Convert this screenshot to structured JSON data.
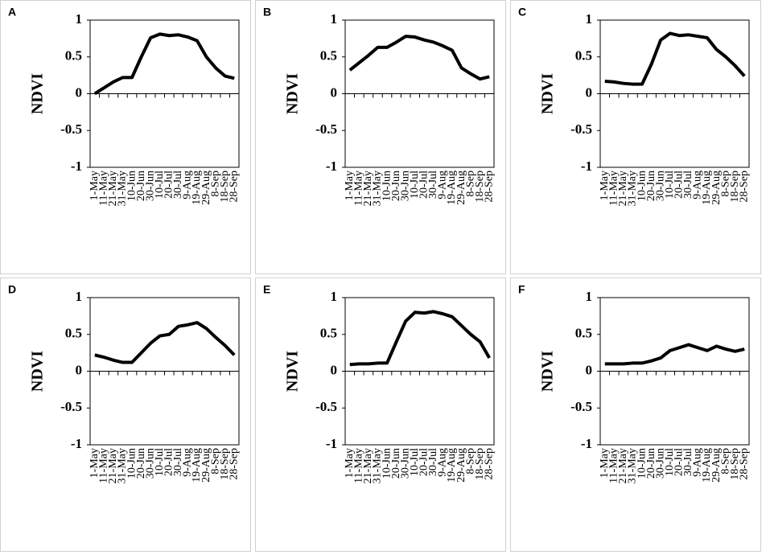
{
  "chart_data": [
    {
      "type": "line",
      "title": "A",
      "ylabel": "NDVI",
      "color": "#000000",
      "categories": [
        "1-May",
        "11-May",
        "21-May",
        "31-May",
        "10-Jun",
        "20-Jun",
        "30-Jun",
        "10-Jul",
        "20-Jul",
        "30-Jul",
        "9-Aug",
        "19-Aug",
        "29-Aug",
        "8-Sep",
        "18-Sep",
        "28-Sep"
      ],
      "values": [
        0.0,
        0.08,
        0.16,
        0.22,
        0.22,
        0.5,
        0.76,
        0.81,
        0.79,
        0.8,
        0.77,
        0.72,
        0.5,
        0.35,
        0.24,
        0.21
      ],
      "ylim": [
        -1,
        1
      ],
      "yticks": [
        -1,
        -0.5,
        0,
        0.5,
        1
      ]
    },
    {
      "type": "line",
      "title": "B",
      "ylabel": "NDVI",
      "color": "#000000",
      "categories": [
        "1-May",
        "11-May",
        "21-May",
        "31-May",
        "10-Jun",
        "20-Jun",
        "30-Jun",
        "10-Jul",
        "20-Jul",
        "30-Jul",
        "9-Aug",
        "19-Aug",
        "29-Aug",
        "8-Sep",
        "18-Sep",
        "28-Sep"
      ],
      "values": [
        0.32,
        0.42,
        0.52,
        0.63,
        0.63,
        0.7,
        0.78,
        0.77,
        0.73,
        0.7,
        0.65,
        0.59,
        0.35,
        0.27,
        0.2,
        0.23
      ],
      "ylim": [
        -1,
        1
      ],
      "yticks": [
        -1,
        -0.5,
        0,
        0.5,
        1
      ]
    },
    {
      "type": "line",
      "title": "C",
      "ylabel": "NDVI",
      "color": "#000000",
      "categories": [
        "1-May",
        "11-May",
        "21-May",
        "31-May",
        "10-Jun",
        "20-Jun",
        "30-Jun",
        "10-Jul",
        "20-Jul",
        "30-Jul",
        "9-Aug",
        "19-Aug",
        "29-Aug",
        "8-Sep",
        "18-Sep",
        "28-Sep"
      ],
      "values": [
        0.17,
        0.16,
        0.14,
        0.13,
        0.13,
        0.4,
        0.73,
        0.82,
        0.79,
        0.8,
        0.78,
        0.76,
        0.6,
        0.5,
        0.38,
        0.24
      ],
      "ylim": [
        -1,
        1
      ],
      "yticks": [
        -1,
        -0.5,
        0,
        0.5,
        1
      ]
    },
    {
      "type": "line",
      "title": "D",
      "ylabel": "NDVI",
      "color": "#000000",
      "categories": [
        "1-May",
        "11-May",
        "21-May",
        "31-May",
        "10-Jun",
        "20-Jun",
        "30-Jun",
        "10-Jul",
        "20-Jul",
        "30-Jul",
        "9-Aug",
        "19-Aug",
        "29-Aug",
        "8-Sep",
        "18-Sep",
        "28-Sep"
      ],
      "values": [
        0.22,
        0.19,
        0.15,
        0.12,
        0.12,
        0.25,
        0.38,
        0.48,
        0.5,
        0.61,
        0.63,
        0.66,
        0.58,
        0.46,
        0.35,
        0.22
      ],
      "ylim": [
        -1,
        1
      ],
      "yticks": [
        -1,
        -0.5,
        0,
        0.5,
        1
      ]
    },
    {
      "type": "line",
      "title": "E",
      "ylabel": "NDVI",
      "color": "#000000",
      "categories": [
        "1-May",
        "11-May",
        "21-May",
        "31-May",
        "10-Jun",
        "20-Jun",
        "30-Jun",
        "10-Jul",
        "20-Jul",
        "30-Jul",
        "9-Aug",
        "19-Aug",
        "29-Aug",
        "8-Sep",
        "18-Sep",
        "28-Sep"
      ],
      "values": [
        0.09,
        0.1,
        0.1,
        0.11,
        0.11,
        0.4,
        0.68,
        0.8,
        0.79,
        0.81,
        0.78,
        0.74,
        0.62,
        0.5,
        0.4,
        0.18
      ],
      "ylim": [
        -1,
        1
      ],
      "yticks": [
        -1,
        -0.5,
        0,
        0.5,
        1
      ]
    },
    {
      "type": "line",
      "title": "F",
      "ylabel": "NDVI",
      "color": "#000000",
      "categories": [
        "1-May",
        "11-May",
        "21-May",
        "31-May",
        "10-Jun",
        "20-Jun",
        "30-Jun",
        "10-Jul",
        "20-Jul",
        "30-Jul",
        "9-Aug",
        "19-Aug",
        "29-Aug",
        "8-Sep",
        "18-Sep",
        "28-Sep"
      ],
      "values": [
        0.1,
        0.1,
        0.1,
        0.11,
        0.11,
        0.14,
        0.18,
        0.28,
        0.32,
        0.36,
        0.32,
        0.28,
        0.34,
        0.3,
        0.27,
        0.3
      ],
      "ylim": [
        -1,
        1
      ],
      "yticks": [
        -1,
        -0.5,
        0,
        0.5,
        1
      ]
    }
  ]
}
